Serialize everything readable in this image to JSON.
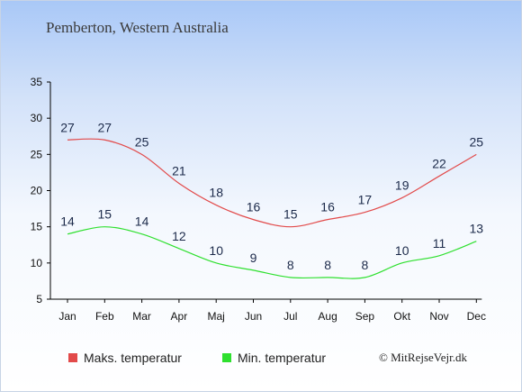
{
  "chart_data": {
    "type": "line",
    "title": "Pemberton, Western Australia",
    "categories": [
      "Jan",
      "Feb",
      "Mar",
      "Apr",
      "Maj",
      "Jun",
      "Jul",
      "Aug",
      "Sep",
      "Okt",
      "Nov",
      "Dec"
    ],
    "yticks": [
      5,
      10,
      15,
      20,
      25,
      30,
      35
    ],
    "ylim": [
      5,
      35
    ],
    "grid": false,
    "legend_position": "bottom",
    "series": [
      {
        "name": "Maks. temperatur",
        "color": "#e24a4a",
        "values": [
          27,
          27,
          25,
          21,
          18,
          16,
          15,
          16,
          17,
          19,
          22,
          25
        ]
      },
      {
        "name": "Min. temperatur",
        "color": "#2fe02f",
        "values": [
          14,
          15,
          14,
          12,
          10,
          9,
          8,
          8,
          8,
          10,
          11,
          13
        ]
      }
    ]
  },
  "copyright": "© MitRejseVejr.dk"
}
